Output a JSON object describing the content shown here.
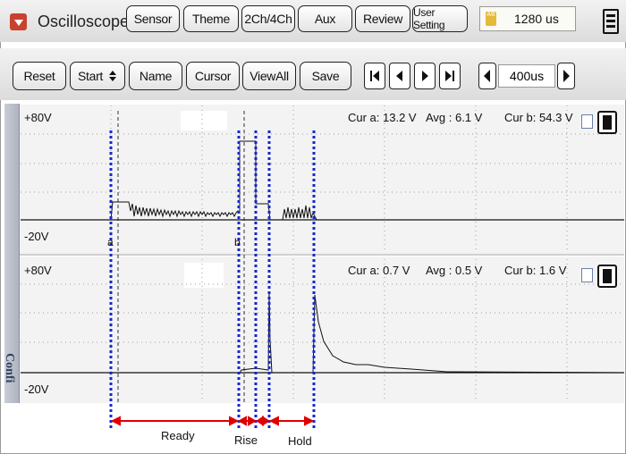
{
  "app": {
    "title": "Oscilloscope",
    "menu_icon": "dropdown-arrow-icon",
    "tabs": [
      "Sensor",
      "Theme",
      "2Ch/4Ch",
      "Aux",
      "Review",
      "User Setting"
    ],
    "time_icon": "ab-timer-icon",
    "time_value": "1280 us",
    "menu_button_icon": "hamburger-menu-icon"
  },
  "toolbar": {
    "reset": "Reset",
    "start": "Start",
    "name": "Name",
    "cursor": "Cursor",
    "viewall": "ViewAll",
    "save": "Save",
    "timebase": "400us"
  },
  "channel1": {
    "top_label": "+80V",
    "bottom_label": "-20V",
    "cur_a": "Cur a: 13.2 V",
    "avg": "Avg  : 6.1 V",
    "cur_b": "Cur b: 54.3 V",
    "marker_a": "a",
    "marker_b": "b"
  },
  "channel2": {
    "top_label": "+80V",
    "bottom_label": "-20V",
    "cur_a": "Cur a: 0.7 V",
    "avg": "Avg  : 0.5 V",
    "cur_b": "Cur b: 1.6 V"
  },
  "side_tab": "Confi",
  "annotations": {
    "ready": "Ready",
    "rise": "Rise",
    "hold": "Hold",
    "line_color": "#1428c8",
    "arrow_color": "#e00000"
  }
}
